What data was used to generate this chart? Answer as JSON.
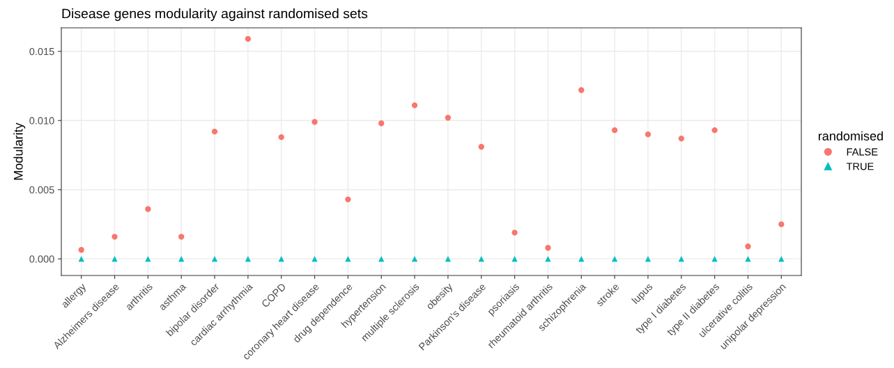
{
  "chart_data": {
    "type": "scatter",
    "title": "Disease genes modularity against randomised sets",
    "ylabel": "Modularity",
    "legend_title": "randomised",
    "categories": [
      "allergy",
      "Alzheimers disease",
      "arthritis",
      "asthma",
      "bipolar disorder",
      "cardiac arrhythmia",
      "COPD",
      "coronary heart disease",
      "drug dependence",
      "hypertension",
      "multiple sclerosis",
      "obesity",
      "Parkinson's disease",
      "psoriasis",
      "rheumatoid arthritis",
      "schizophrenia",
      "stroke",
      "lupus",
      "type I diabetes",
      "type II diabetes",
      "ulcerative colitis",
      "unipolar depression"
    ],
    "series": [
      {
        "name": "FALSE",
        "color": "#f8766d",
        "marker": "circle",
        "values": [
          0.00065,
          0.0016,
          0.0036,
          0.0016,
          0.0092,
          0.0159,
          0.0088,
          0.0099,
          0.0043,
          0.0098,
          0.0111,
          0.0102,
          0.0081,
          0.0019,
          0.0008,
          0.0122,
          0.0093,
          0.009,
          0.0087,
          0.0093,
          0.0009,
          0.0025
        ]
      },
      {
        "name": "TRUE",
        "color": "#00bfc4",
        "marker": "triangle",
        "values": [
          0,
          0,
          0,
          0,
          0,
          0,
          0,
          0,
          0,
          0,
          0,
          0,
          0,
          0,
          0,
          0,
          0,
          0,
          0,
          0,
          0,
          0
        ]
      }
    ],
    "ylim": [
      -0.0012,
      0.0167
    ],
    "yticks": [
      {
        "value": 0,
        "label": "0.000"
      },
      {
        "value": 0.005,
        "label": "0.005"
      },
      {
        "value": 0.01,
        "label": "0.010"
      },
      {
        "value": 0.015,
        "label": "0.015"
      }
    ],
    "grid": true,
    "legend": "right"
  }
}
